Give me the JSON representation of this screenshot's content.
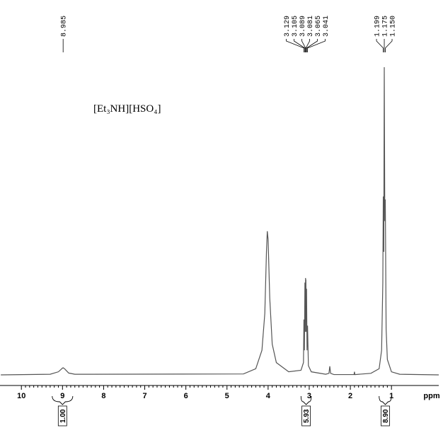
{
  "chart_data": {
    "type": "line",
    "annotation": "[Et₃NH][HSO₄]",
    "xlabel": "ppm",
    "xlim": [
      10.52,
      -0.15
    ],
    "ylim": [
      0,
      100
    ],
    "xticks": [
      10,
      9,
      8,
      7,
      6,
      5,
      4,
      3,
      2,
      1
    ],
    "color": "#555555",
    "x": [
      10.5,
      9.3,
      9.1,
      9.0,
      8.985,
      8.95,
      8.85,
      8.7,
      4.6,
      4.3,
      4.15,
      4.08,
      4.04,
      4.02,
      4.0,
      3.96,
      3.9,
      3.8,
      3.5,
      3.2,
      3.14,
      3.129,
      3.117,
      3.105,
      3.097,
      3.089,
      3.085,
      3.081,
      3.073,
      3.065,
      3.053,
      3.041,
      3.02,
      2.95,
      2.6,
      2.52,
      2.5,
      2.48,
      2.4,
      1.91,
      1.9,
      1.89,
      1.5,
      1.3,
      1.24,
      1.21,
      1.199,
      1.187,
      1.175,
      1.162,
      1.15,
      1.13,
      1.1,
      1.0,
      0.8,
      -0.15
    ],
    "values": [
      0,
      0.2,
      1,
      2.2,
      2.3,
      2,
      0.6,
      0.2,
      0.3,
      2,
      8,
      20,
      40,
      46.7,
      44,
      25,
      10,
      4,
      1,
      1.5,
      4,
      18,
      8,
      30,
      14,
      31.5,
      26,
      31,
      14,
      28,
      8,
      16,
      3,
      1,
      0.2,
      0.5,
      2.8,
      0.5,
      0.1,
      0.1,
      1,
      0.1,
      0.5,
      2,
      8,
      30,
      58,
      40,
      100,
      50,
      57,
      15,
      5,
      1,
      0.2,
      0
    ],
    "peak_label_groups": [
      [
        {
          "value": 8.985,
          "label": "8.985"
        }
      ],
      [
        {
          "value": 3.129,
          "label": "3.129"
        },
        {
          "value": 3.105,
          "label": "3.105"
        },
        {
          "value": 3.089,
          "label": "3.089"
        },
        {
          "value": 3.081,
          "label": "3.081"
        },
        {
          "value": 3.065,
          "label": "3.065"
        },
        {
          "value": 3.041,
          "label": "3.041"
        }
      ],
      [
        {
          "value": 1.199,
          "label": "1.199"
        },
        {
          "value": 1.175,
          "label": "1.175"
        },
        {
          "value": 1.15,
          "label": "1.150"
        }
      ]
    ],
    "integrals": [
      {
        "value": 1,
        "label": "1.00",
        "from": 9.25,
        "to": 8.75
      },
      {
        "value": 5.93,
        "label": "5.93",
        "from": 3.2,
        "to": 2.95
      },
      {
        "value": 8.9,
        "label": "8.90",
        "from": 1.3,
        "to": 1.0
      }
    ]
  }
}
